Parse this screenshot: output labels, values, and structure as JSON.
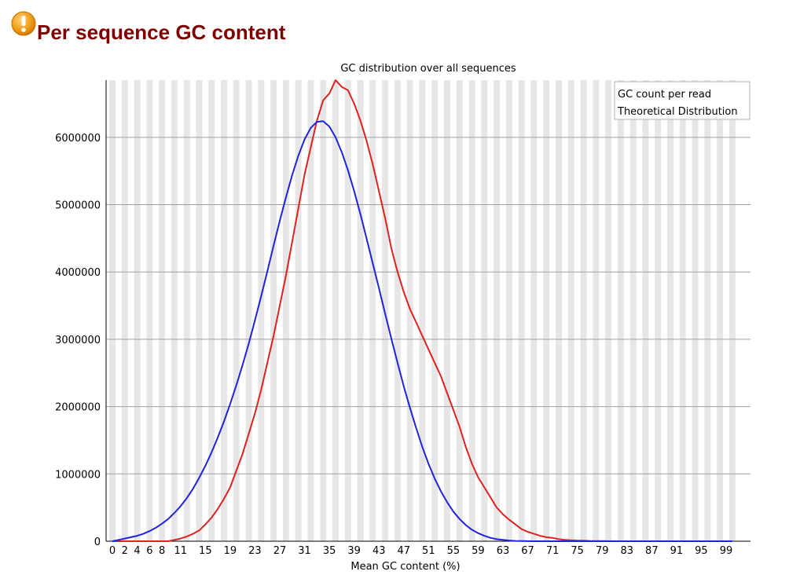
{
  "header": {
    "title": "Per sequence GC content",
    "status_icon": "warning-icon",
    "title_color": "#800000",
    "icon_color": "#f0a020"
  },
  "chart_data": {
    "type": "line",
    "title": "GC distribution over all sequences",
    "xlabel": "Mean GC content (%)",
    "ylabel": "",
    "x_ticks": [
      0,
      2,
      4,
      6,
      8,
      11,
      15,
      19,
      23,
      27,
      31,
      35,
      39,
      43,
      47,
      51,
      55,
      59,
      63,
      67,
      71,
      75,
      79,
      83,
      87,
      91,
      95,
      99
    ],
    "y_ticks": [
      0,
      1000000,
      2000000,
      3000000,
      4000000,
      5000000,
      6000000
    ],
    "xlim": [
      0,
      100
    ],
    "ylim": [
      0,
      6850000
    ],
    "grid": true,
    "legend_position": "top-right",
    "series": [
      {
        "name": "GC count per read",
        "color": "#dd2222",
        "values": [
          0,
          0,
          0,
          0,
          0,
          0,
          0,
          0,
          0,
          0,
          20000,
          40000,
          70000,
          110000,
          160000,
          250000,
          350000,
          480000,
          630000,
          800000,
          1050000,
          1300000,
          1600000,
          1900000,
          2250000,
          2650000,
          3050000,
          3500000,
          3950000,
          4450000,
          4950000,
          5450000,
          5850000,
          6250000,
          6550000,
          6650000,
          6850000,
          6750000,
          6700000,
          6500000,
          6250000,
          5950000,
          5600000,
          5200000,
          4800000,
          4350000,
          4000000,
          3700000,
          3450000,
          3250000,
          3050000,
          2850000,
          2650000,
          2450000,
          2200000,
          1950000,
          1700000,
          1400000,
          1150000,
          950000,
          800000,
          650000,
          500000,
          400000,
          320000,
          250000,
          180000,
          140000,
          110000,
          80000,
          60000,
          50000,
          30000,
          20000,
          15000,
          10000,
          8000,
          5000,
          3000,
          2000,
          1000,
          0,
          0,
          0,
          0,
          0,
          0,
          0,
          0,
          0,
          0,
          0,
          0,
          0,
          0,
          0,
          0,
          0,
          0,
          0,
          0
        ]
      },
      {
        "name": "Theoretical Distribution",
        "color": "#2222dd",
        "values": [
          0,
          20000,
          40000,
          60000,
          80000,
          110000,
          150000,
          200000,
          260000,
          330000,
          420000,
          520000,
          640000,
          780000,
          940000,
          1120000,
          1320000,
          1540000,
          1780000,
          2040000,
          2320000,
          2620000,
          2940000,
          3280000,
          3640000,
          4010000,
          4390000,
          4760000,
          5110000,
          5440000,
          5730000,
          5970000,
          6140000,
          6230000,
          6240000,
          6160000,
          6000000,
          5780000,
          5510000,
          5200000,
          4860000,
          4500000,
          4130000,
          3760000,
          3380000,
          3010000,
          2650000,
          2300000,
          1980000,
          1680000,
          1400000,
          1150000,
          930000,
          740000,
          580000,
          440000,
          330000,
          240000,
          170000,
          120000,
          80000,
          50000,
          30000,
          20000,
          10000,
          5000,
          2000,
          1000,
          0,
          0,
          0,
          0,
          0,
          0,
          0,
          0,
          0,
          0,
          0,
          0,
          0,
          0,
          0,
          0,
          0,
          0,
          0,
          0,
          0,
          0,
          0,
          0,
          0,
          0,
          0,
          0,
          0,
          0,
          0,
          0,
          0
        ]
      }
    ]
  }
}
